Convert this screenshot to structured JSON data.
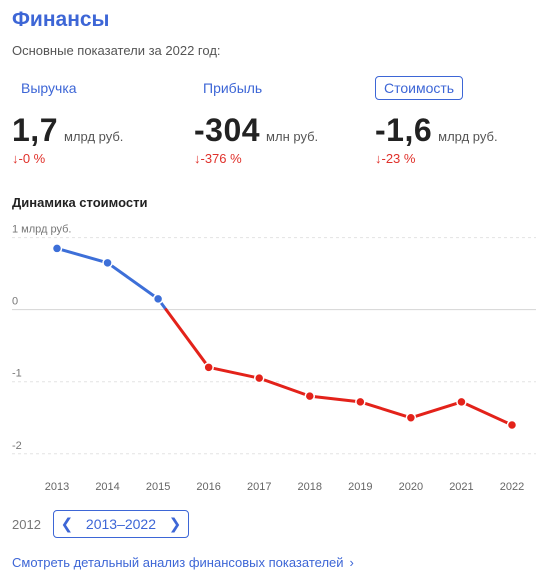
{
  "header": {
    "title": "Финансы",
    "subtitle": "Основные показатели за 2022 год:"
  },
  "metrics": [
    {
      "label": "Выручка",
      "value": "1,7",
      "unit": "млрд руб.",
      "change": "↓-0 %",
      "active": false
    },
    {
      "label": "Прибыль",
      "value": "-304",
      "unit": "млн руб.",
      "change": "↓-376 %",
      "active": false
    },
    {
      "label": "Стоимость",
      "value": "-1,6",
      "unit": "млрд руб.",
      "change": "↓-23 %",
      "active": true
    }
  ],
  "chart_section_title": "Динамика стоимости",
  "chart_data": {
    "type": "line",
    "x": [
      "2013",
      "2014",
      "2015",
      "2016",
      "2017",
      "2018",
      "2019",
      "2020",
      "2021",
      "2022"
    ],
    "values": [
      0.85,
      0.65,
      0.15,
      -0.8,
      -0.95,
      -1.2,
      -1.28,
      -1.5,
      -1.28,
      -1.6
    ],
    "yticks": [
      1,
      0,
      -1,
      -2
    ],
    "ytick_labels": [
      "1 млрд руб.",
      "0",
      "-1",
      "-2"
    ],
    "ylim": [
      -2.1,
      1.05
    ],
    "colors": {
      "positive": "#3d6fd8",
      "negative": "#e3221a"
    },
    "grid": true
  },
  "year_control": {
    "prev_year": "2012",
    "range": "2013–2022"
  },
  "footer_link": "Смотреть детальный анализ финансовых показателей",
  "accent_color": "#3d66d6"
}
